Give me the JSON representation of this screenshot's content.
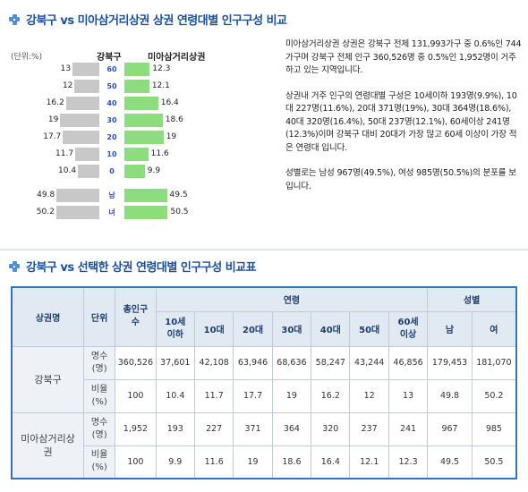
{
  "section1": {
    "title": "강북구 vs 미아삼거리상권 상권 연령대별 인구구성 비교"
  },
  "chart_data": {
    "type": "bar",
    "unit_label": "(단위:%)",
    "left_header": "강북구",
    "right_header": "미아삼거리상권",
    "age_categories": [
      "60",
      "50",
      "40",
      "30",
      "20",
      "10",
      "0"
    ],
    "left_values": [
      13,
      12,
      16.2,
      19,
      17.7,
      11.7,
      10.4
    ],
    "right_values": [
      12.3,
      12.1,
      16.4,
      18.6,
      19,
      11.6,
      9.9
    ],
    "gender_categories": [
      "남",
      "녀"
    ],
    "gender_left_values": [
      49.8,
      50.2
    ],
    "gender_right_values": [
      49.5,
      50.5
    ]
  },
  "description": {
    "paragraphs": [
      "미아삼거리상권 상권은 강북구 전체 131,993가구 중 0.6%인 744가구며 강북구 전체 인구 360,526명 중 0.5%인 1,952명이 거주하고 있는 지역입니다.",
      "상권내 거주 인구의 연령대별 구성은 10세이하 193명(9.9%), 10대 227명(11.6%), 20대 371명(19%), 30대 364명(18.6%), 40대 320명(16.4%), 50대 237명(12.1%), 60세이상 241명(12.3%)이며 강북구 대비 20대가 가장 많고 60세 이상이 가장 적은 연령대 입니다.",
      "성별로는 남성 967명(49.5%), 여성 985명(50.5%)의 분포를 보입니다."
    ]
  },
  "section2": {
    "title": "강북구 vs 선택한 상권 연령대별 인구구성 비교표"
  },
  "table": {
    "headers": {
      "name": "상권명",
      "unit": "단위",
      "total": "총인구수",
      "age_group": "연령",
      "gender_group": "성별",
      "age_cols": [
        "10세이하",
        "10대",
        "20대",
        "30대",
        "40대",
        "50대",
        "60세이상"
      ],
      "gender_cols": [
        "남",
        "여"
      ]
    },
    "rows": [
      {
        "name": "강북구",
        "unit": "명수(명)",
        "total": "360,526",
        "ages": [
          "37,601",
          "42,108",
          "63,946",
          "68,636",
          "58,247",
          "43,244",
          "46,856"
        ],
        "genders": [
          "179,453",
          "181,070"
        ]
      },
      {
        "name": "",
        "unit": "비율(%)",
        "total": "100",
        "ages": [
          "10.4",
          "11.7",
          "17.7",
          "19",
          "16.2",
          "12",
          "13"
        ],
        "genders": [
          "49.8",
          "50.2"
        ]
      },
      {
        "name": "미아삼거리상권",
        "unit": "명수(명)",
        "total": "1,952",
        "ages": [
          "193",
          "227",
          "371",
          "364",
          "320",
          "237",
          "241"
        ],
        "genders": [
          "967",
          "985"
        ]
      },
      {
        "name": "",
        "unit": "비율(%)",
        "total": "100",
        "ages": [
          "9.9",
          "11.6",
          "19",
          "18.6",
          "16.4",
          "12.1",
          "12.3"
        ],
        "genders": [
          "49.5",
          "50.5"
        ]
      }
    ]
  }
}
